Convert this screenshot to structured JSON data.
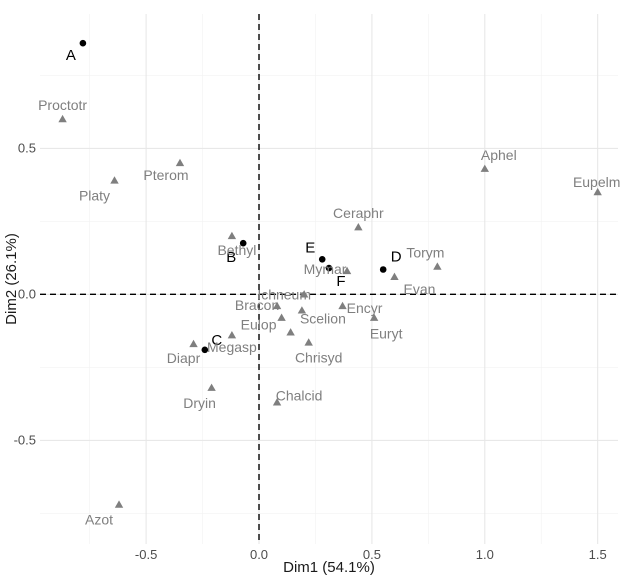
{
  "chart_data": {
    "type": "scatter",
    "xlabel": "Dim1 (54.1%)",
    "ylabel": "Dim2 (26.1%)",
    "xlim": [
      -0.97,
      1.59
    ],
    "ylim": [
      -0.855,
      0.96
    ],
    "x_ticks": [
      -0.5,
      0.0,
      0.5,
      1.0,
      1.5
    ],
    "x_tick_labels": [
      "-0.5",
      "0.0",
      "0.5",
      "1.0",
      "1.5"
    ],
    "y_ticks": [
      -0.5,
      0.0,
      0.5
    ],
    "y_tick_labels": [
      "-0.5",
      "0.0",
      "0.5"
    ],
    "grid": true,
    "reference_lines": {
      "x": 0,
      "y": 0,
      "style": "dashed"
    },
    "series": [
      {
        "marker": "circle",
        "color": "#000000",
        "points": [
          {
            "label": "A",
            "x": -0.78,
            "y": 0.86
          },
          {
            "label": "B",
            "x": -0.07,
            "y": 0.175
          },
          {
            "label": "C",
            "x": -0.24,
            "y": -0.19
          },
          {
            "label": "D",
            "x": 0.55,
            "y": 0.085
          },
          {
            "label": "E",
            "x": 0.28,
            "y": 0.12
          },
          {
            "label": "F",
            "x": 0.31,
            "y": 0.09
          }
        ]
      },
      {
        "marker": "triangle",
        "color": "#7f7f7f",
        "points": [
          {
            "label": "Proctotr",
            "x": -0.87,
            "y": 0.6
          },
          {
            "label": "Platy",
            "x": -0.64,
            "y": 0.39
          },
          {
            "label": "Pterom",
            "x": -0.35,
            "y": 0.45
          },
          {
            "label": "Bethyl",
            "x": -0.12,
            "y": 0.2
          },
          {
            "label": "Ceraphr",
            "x": 0.44,
            "y": 0.23
          },
          {
            "label": "Aphel",
            "x": 1.0,
            "y": 0.43
          },
          {
            "label": "Eupelm",
            "x": 1.5,
            "y": 0.35
          },
          {
            "label": "Torym",
            "x": 0.79,
            "y": 0.095
          },
          {
            "label": "Evan",
            "x": 0.6,
            "y": 0.06
          },
          {
            "label": "Mymar",
            "x": 0.39,
            "y": 0.08
          },
          {
            "label": "Ichneum",
            "x": 0.2,
            "y": 0.0
          },
          {
            "label": "Encyr",
            "x": 0.37,
            "y": -0.04
          },
          {
            "label": "Euryt",
            "x": 0.51,
            "y": -0.08
          },
          {
            "label": "Bracon",
            "x": 0.08,
            "y": -0.04
          },
          {
            "label": "Eulop",
            "x": 0.1,
            "y": -0.08
          },
          {
            "label": "Scelion",
            "x": 0.19,
            "y": -0.055
          },
          {
            "label": "Megasp",
            "x": -0.12,
            "y": -0.14
          },
          {
            "label": "Chrisyd",
            "x": 0.22,
            "y": -0.165
          },
          {
            "label": "Diapr",
            "x": -0.29,
            "y": -0.17
          },
          {
            "label": "Dryin",
            "x": -0.21,
            "y": -0.32
          },
          {
            "label": "Chalcid",
            "x": 0.08,
            "y": -0.37
          },
          {
            "label": "Azot",
            "x": -0.62,
            "y": -0.72
          },
          {
            "label": "",
            "x": 0.14,
            "y": -0.13
          }
        ]
      }
    ]
  }
}
